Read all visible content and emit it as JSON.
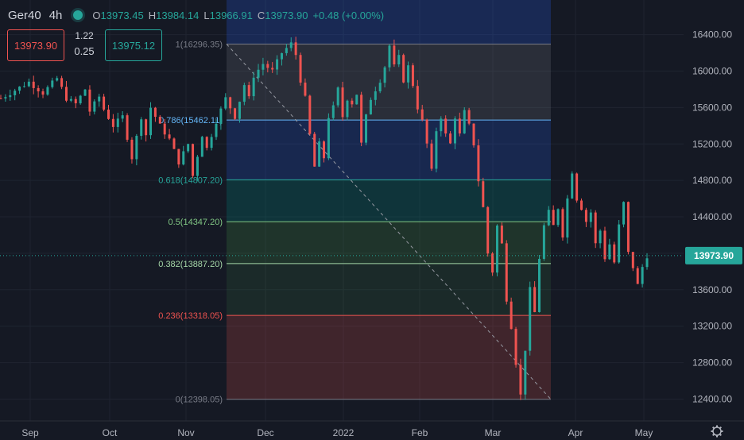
{
  "symbol": "Ger40",
  "timeframe": "4h",
  "ohlc": {
    "o_label": "O",
    "o": "13973.45",
    "h_label": "H",
    "h": "13984.14",
    "l_label": "L",
    "l": "13966.91",
    "c_label": "C",
    "c": "13973.90",
    "change": "+0.48 (+0.00%)"
  },
  "trade": {
    "sell": "13973.90",
    "spread_top": "1.22",
    "spread_bottom": "0.25",
    "buy": "13975.12"
  },
  "price_scale": {
    "labels": [
      "16400.00",
      "16000.00",
      "15600.00",
      "15200.00",
      "14800.00",
      "14400.00",
      "14000.00",
      "13600.00",
      "13200.00",
      "12800.00",
      "12400.00"
    ],
    "current": "13973.90"
  },
  "colors": {
    "background": "#151924",
    "up": "#26a69a",
    "down": "#ef5350",
    "text": "#b2b5be"
  },
  "chart_data": {
    "type": "candlestick",
    "x_labels": [
      "Sep",
      "Oct",
      "Nov",
      "Dec",
      "2022",
      "Feb",
      "Mar",
      "Apr",
      "May"
    ],
    "ylim": [
      12160,
      16780
    ],
    "price_path": [
      [
        0,
        15700
      ],
      [
        6,
        15880
      ],
      [
        9,
        15760
      ],
      [
        12,
        15920
      ],
      [
        14,
        15700
      ],
      [
        16,
        15640
      ],
      [
        18,
        15800
      ],
      [
        19,
        15560
      ],
      [
        21,
        15720
      ],
      [
        22,
        15580
      ],
      [
        24,
        15400
      ],
      [
        26,
        15500
      ],
      [
        28,
        15050
      ],
      [
        30,
        15500
      ],
      [
        31,
        15300
      ],
      [
        32,
        15600
      ],
      [
        34,
        15400
      ],
      [
        36,
        15250
      ],
      [
        38,
        15000
      ],
      [
        40,
        15200
      ],
      [
        41,
        14850
      ],
      [
        43,
        15300
      ],
      [
        44,
        15150
      ],
      [
        46,
        15450
      ],
      [
        48,
        15700
      ],
      [
        50,
        15500
      ],
      [
        52,
        15850
      ],
      [
        53,
        15700
      ],
      [
        54,
        15950
      ],
      [
        56,
        16080
      ],
      [
        58,
        16000
      ],
      [
        60,
        16200
      ],
      [
        62,
        16300
      ],
      [
        63,
        16180
      ],
      [
        64,
        15900
      ],
      [
        65,
        15700
      ],
      [
        66,
        15300
      ],
      [
        67,
        14950
      ],
      [
        68,
        15200
      ],
      [
        69,
        15050
      ],
      [
        70,
        15500
      ],
      [
        71,
        15600
      ],
      [
        72,
        15800
      ],
      [
        73,
        15500
      ],
      [
        74,
        15700
      ],
      [
        75,
        15650
      ],
      [
        76,
        15750
      ],
      [
        77,
        15200
      ],
      [
        78,
        15500
      ],
      [
        79,
        15700
      ],
      [
        80,
        15800
      ],
      [
        81,
        15900
      ],
      [
        82,
        16050
      ],
      [
        83,
        16280
      ],
      [
        84,
        16050
      ],
      [
        85,
        16150
      ],
      [
        86,
        15900
      ],
      [
        87,
        16050
      ],
      [
        88,
        15850
      ],
      [
        89,
        15600
      ],
      [
        90,
        15450
      ],
      [
        91,
        15200
      ],
      [
        92,
        14900
      ],
      [
        93,
        15350
      ],
      [
        94,
        15500
      ],
      [
        95,
        15300
      ],
      [
        96,
        15200
      ],
      [
        97,
        15500
      ],
      [
        98,
        15300
      ],
      [
        99,
        15550
      ],
      [
        100,
        15400
      ],
      [
        101,
        15200
      ],
      [
        102,
        14800
      ],
      [
        103,
        14500
      ],
      [
        104,
        14000
      ],
      [
        105,
        13800
      ],
      [
        106,
        14300
      ],
      [
        107,
        14100
      ],
      [
        108,
        13500
      ],
      [
        109,
        13200
      ],
      [
        110,
        12800
      ],
      [
        111,
        12440
      ],
      [
        112,
        12950
      ],
      [
        113,
        13600
      ],
      [
        114,
        13350
      ],
      [
        115,
        13950
      ],
      [
        116,
        14300
      ],
      [
        117,
        14450
      ],
      [
        118,
        14300
      ],
      [
        119,
        14500
      ],
      [
        120,
        14200
      ],
      [
        121,
        14600
      ],
      [
        122,
        14900
      ],
      [
        123,
        14600
      ],
      [
        124,
        14500
      ],
      [
        125,
        14350
      ],
      [
        126,
        14450
      ],
      [
        127,
        14100
      ],
      [
        128,
        14250
      ],
      [
        129,
        13950
      ],
      [
        130,
        14100
      ],
      [
        131,
        13900
      ],
      [
        132,
        14300
      ],
      [
        133,
        14550
      ],
      [
        134,
        14000
      ],
      [
        135,
        13850
      ],
      [
        136,
        13650
      ],
      [
        137,
        13850
      ],
      [
        138,
        13974
      ]
    ],
    "fibonacci": [
      {
        "level": "1",
        "price": 16296.35,
        "label": "1(16296.35)",
        "color": "#787b86"
      },
      {
        "level": "0.786",
        "price": 15462.11,
        "label": "0.786(15462.11)",
        "color": "#64b5f6"
      },
      {
        "level": "0.618",
        "price": 14807.2,
        "label": "0.618(14807.20)",
        "color": "#26a69a"
      },
      {
        "level": "0.5",
        "price": 14347.2,
        "label": "0.5(14347.20)",
        "color": "#81c784"
      },
      {
        "level": "0.382",
        "price": 13887.2,
        "label": "0.382(13887.20)",
        "color": "#a5d6a7"
      },
      {
        "level": "0.236",
        "price": 13318.05,
        "label": "0.236(13318.05)",
        "color": "#ef5350"
      },
      {
        "level": "0",
        "price": 12398.05,
        "label": "0(12398.05)",
        "color": "#787b86"
      }
    ]
  }
}
